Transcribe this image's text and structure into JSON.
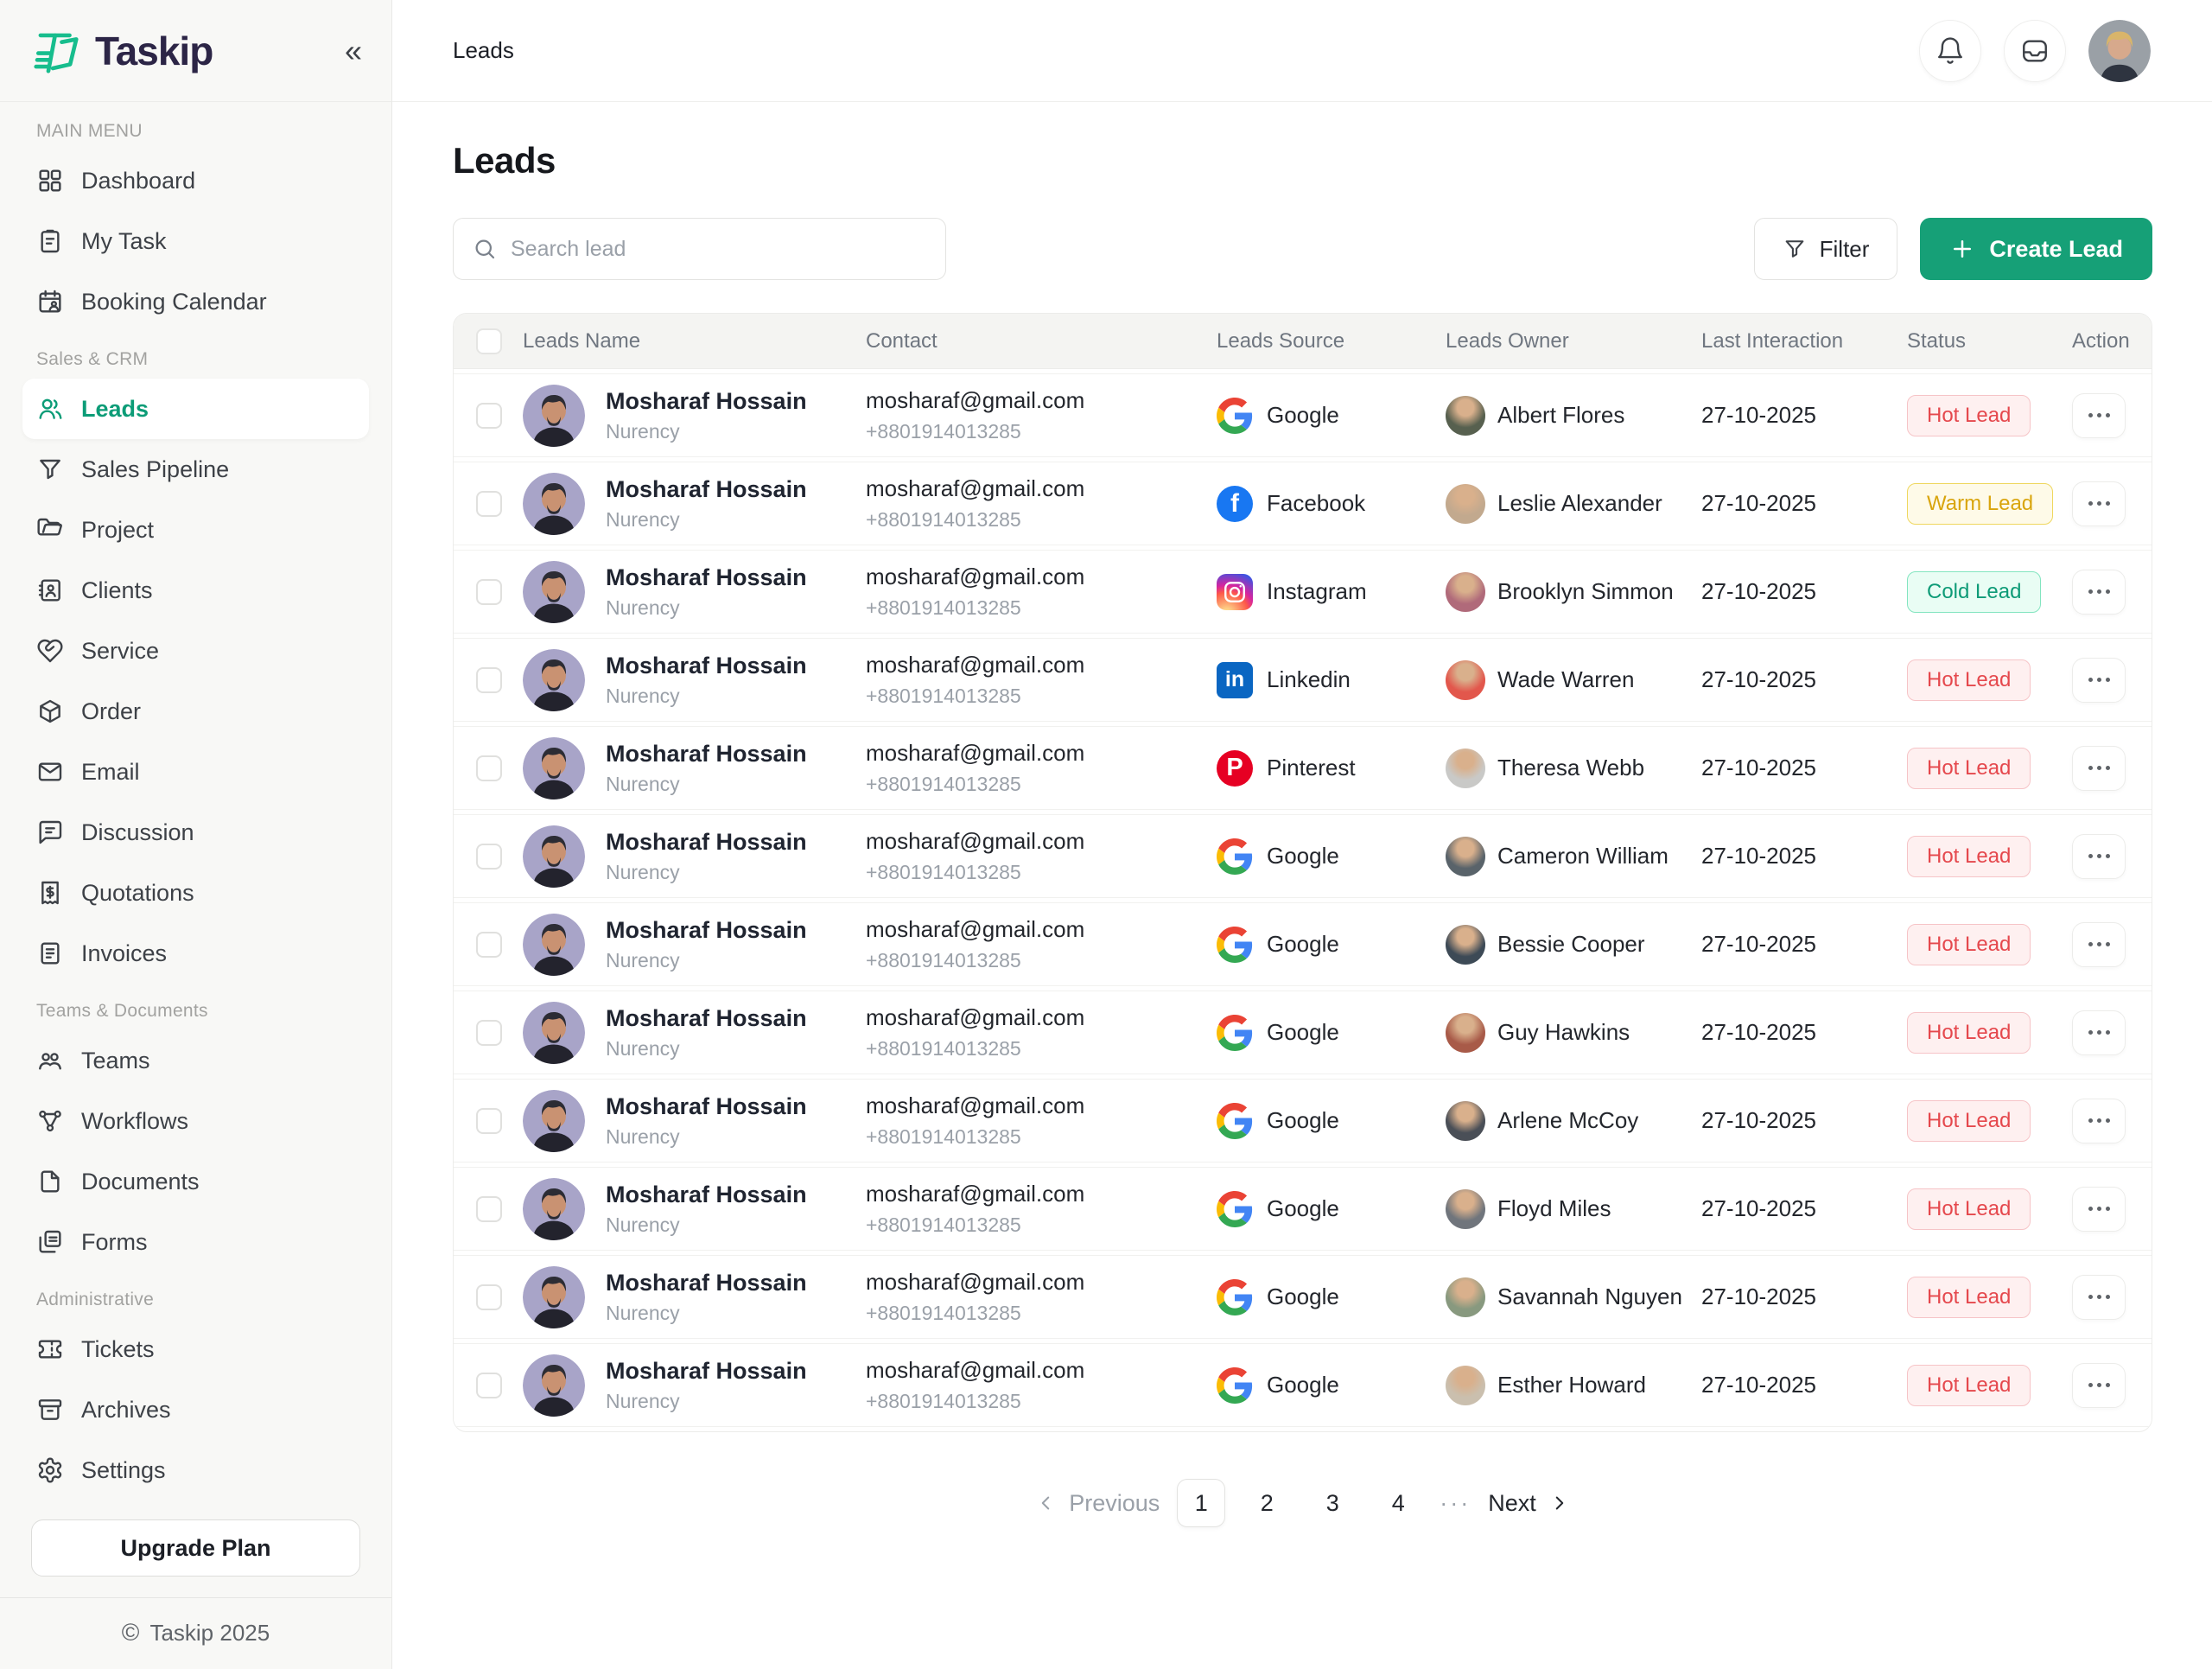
{
  "brand": {
    "name": "Taskip",
    "logo_green": "#17bd8d",
    "accent_green": "#16a077"
  },
  "topbar": {
    "breadcrumb": "Leads",
    "icons": [
      "bell-icon",
      "inbox-icon"
    ],
    "avatar": "user-avatar"
  },
  "sidebar": {
    "collapse_icon": "chevrons-left-icon",
    "sections": [
      {
        "label": "MAIN MENU",
        "items": [
          {
            "label": "Dashboard",
            "icon": "dashboard"
          },
          {
            "label": "My Task",
            "icon": "my-task"
          },
          {
            "label": "Booking Calendar",
            "icon": "booking-calendar"
          }
        ]
      },
      {
        "label": "Sales & CRM",
        "items": [
          {
            "label": "Leads",
            "icon": "leads",
            "active": true
          },
          {
            "label": "Sales Pipeline",
            "icon": "sales-pipeline"
          },
          {
            "label": "Project",
            "icon": "project"
          },
          {
            "label": "Clients",
            "icon": "clients"
          },
          {
            "label": "Service",
            "icon": "service"
          },
          {
            "label": "Order",
            "icon": "order"
          },
          {
            "label": "Email",
            "icon": "email"
          },
          {
            "label": "Discussion",
            "icon": "discussion"
          },
          {
            "label": "Quotations",
            "icon": "quotations"
          },
          {
            "label": "Invoices",
            "icon": "invoices"
          }
        ]
      },
      {
        "label": "Teams & Documents",
        "items": [
          {
            "label": "Teams",
            "icon": "teams"
          },
          {
            "label": "Workflows",
            "icon": "workflows"
          },
          {
            "label": "Documents",
            "icon": "documents"
          },
          {
            "label": "Forms",
            "icon": "forms"
          }
        ]
      },
      {
        "label": "Administrative",
        "items": [
          {
            "label": "Tickets",
            "icon": "tickets"
          },
          {
            "label": "Archives",
            "icon": "archives"
          },
          {
            "label": "Settings",
            "icon": "settings"
          }
        ]
      }
    ],
    "upgrade_label": "Upgrade Plan",
    "footer": "Taskip 2025"
  },
  "page": {
    "title": "Leads",
    "search_placeholder": "Search lead",
    "filter_label": "Filter",
    "create_label": "Create Lead"
  },
  "table": {
    "columns": [
      "Leads Name",
      "Contact",
      "Leads Source",
      "Leads Owner",
      "Last Interaction",
      "Status",
      "Action"
    ],
    "status_colors": {
      "Hot Lead": {
        "text": "#e5484d",
        "bg": "#fef0f0",
        "border": "#f6c4c7"
      },
      "Warm Lead": {
        "text": "#d9a50d",
        "bg": "#fefae8",
        "border": "#efd75e"
      },
      "Cold Lead": {
        "text": "#0e9b77",
        "bg": "#e9fdf4",
        "border": "#83e5c0"
      }
    },
    "rows": [
      {
        "name": "Mosharaf Hossain",
        "company": "Nurency",
        "email": "mosharaf@gmail.com",
        "phone": "+8801914013285",
        "source": "Google",
        "owner": "Albert Flores",
        "owner_color": "#57604f",
        "last_interaction": "27-10-2025",
        "status": "Hot Lead"
      },
      {
        "name": "Mosharaf Hossain",
        "company": "Nurency",
        "email": "mosharaf@gmail.com",
        "phone": "+8801914013285",
        "source": "Facebook",
        "owner": "Leslie Alexander",
        "owner_color": "#c2a98e",
        "last_interaction": "27-10-2025",
        "status": "Warm Lead"
      },
      {
        "name": "Mosharaf Hossain",
        "company": "Nurency",
        "email": "mosharaf@gmail.com",
        "phone": "+8801914013285",
        "source": "Instagram",
        "owner": "Brooklyn Simmon",
        "owner_color": "#b06a7a",
        "last_interaction": "27-10-2025",
        "status": "Cold Lead"
      },
      {
        "name": "Mosharaf Hossain",
        "company": "Nurency",
        "email": "mosharaf@gmail.com",
        "phone": "+8801914013285",
        "source": "Linkedin",
        "owner": "Wade Warren",
        "owner_color": "#e2574c",
        "last_interaction": "27-10-2025",
        "status": "Hot Lead"
      },
      {
        "name": "Mosharaf Hossain",
        "company": "Nurency",
        "email": "mosharaf@gmail.com",
        "phone": "+8801914013285",
        "source": "Pinterest",
        "owner": "Theresa Webb",
        "owner_color": "#c9c9c7",
        "last_interaction": "27-10-2025",
        "status": "Hot Lead"
      },
      {
        "name": "Mosharaf Hossain",
        "company": "Nurency",
        "email": "mosharaf@gmail.com",
        "phone": "+8801914013285",
        "source": "Google",
        "owner": "Cameron William",
        "owner_color": "#59636a",
        "last_interaction": "27-10-2025",
        "status": "Hot Lead"
      },
      {
        "name": "Mosharaf Hossain",
        "company": "Nurency",
        "email": "mosharaf@gmail.com",
        "phone": "+8801914013285",
        "source": "Google",
        "owner": "Bessie Cooper",
        "owner_color": "#3d4a56",
        "last_interaction": "27-10-2025",
        "status": "Hot Lead"
      },
      {
        "name": "Mosharaf Hossain",
        "company": "Nurency",
        "email": "mosharaf@gmail.com",
        "phone": "+8801914013285",
        "source": "Google",
        "owner": "Guy Hawkins",
        "owner_color": "#a85a48",
        "last_interaction": "27-10-2025",
        "status": "Hot Lead"
      },
      {
        "name": "Mosharaf Hossain",
        "company": "Nurency",
        "email": "mosharaf@gmail.com",
        "phone": "+8801914013285",
        "source": "Google",
        "owner": "Arlene McCoy",
        "owner_color": "#4a4f57",
        "last_interaction": "27-10-2025",
        "status": "Hot Lead"
      },
      {
        "name": "Mosharaf Hossain",
        "company": "Nurency",
        "email": "mosharaf@gmail.com",
        "phone": "+8801914013285",
        "source": "Google",
        "owner": "Floyd Miles",
        "owner_color": "#70757c",
        "last_interaction": "27-10-2025",
        "status": "Hot Lead"
      },
      {
        "name": "Mosharaf Hossain",
        "company": "Nurency",
        "email": "mosharaf@gmail.com",
        "phone": "+8801914013285",
        "source": "Google",
        "owner": "Savannah Nguyen",
        "owner_color": "#88997f",
        "last_interaction": "27-10-2025",
        "status": "Hot Lead"
      },
      {
        "name": "Mosharaf Hossain",
        "company": "Nurency",
        "email": "mosharaf@gmail.com",
        "phone": "+8801914013285",
        "source": "Google",
        "owner": "Esther Howard",
        "owner_color": "#cabfae",
        "last_interaction": "27-10-2025",
        "status": "Hot Lead"
      }
    ]
  },
  "pagination": {
    "previous_label": "Previous",
    "pages": [
      "1",
      "2",
      "3",
      "4"
    ],
    "active_page": "1",
    "ellipsis": "···",
    "next_label": "Next"
  }
}
